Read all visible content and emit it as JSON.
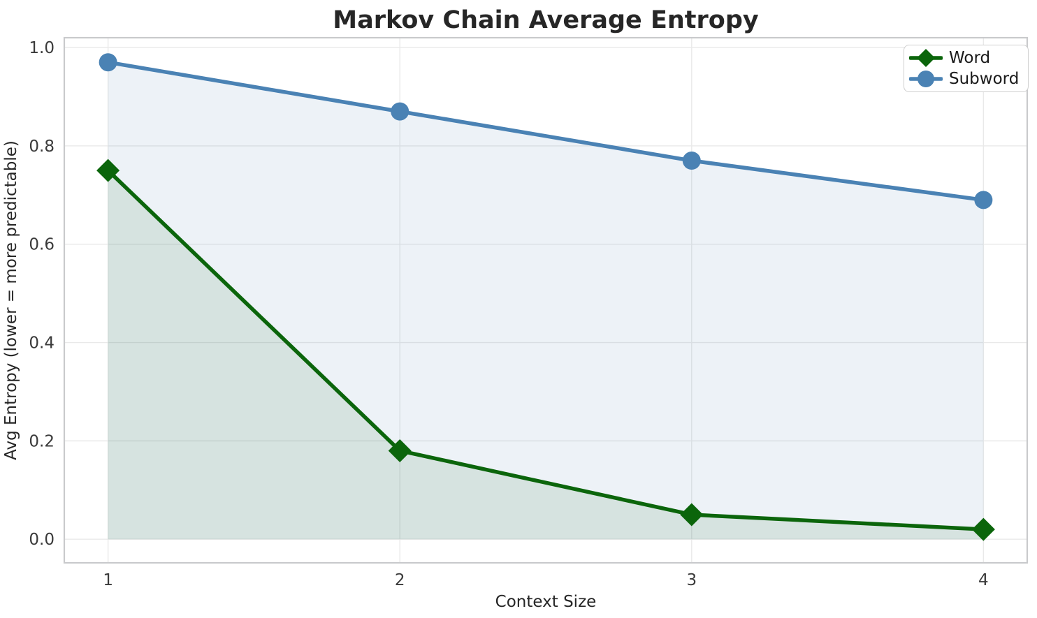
{
  "figure": {
    "background": "#ffffff"
  },
  "chart_data": {
    "type": "line",
    "title": "Markov Chain Average Entropy",
    "xlabel": "Context Size",
    "ylabel": "Avg Entropy (lower = more predictable)",
    "x": [
      1,
      2,
      3,
      4
    ],
    "series": [
      {
        "name": "Word",
        "color": "#0b650b",
        "marker": "diamond",
        "values": [
          0.75,
          0.18,
          0.05,
          0.02
        ],
        "fill_to_zero": true,
        "fill_alpha": 0.1
      },
      {
        "name": "Subword",
        "color": "#4a82b4",
        "marker": "circle",
        "values": [
          0.97,
          0.87,
          0.77,
          0.69
        ],
        "fill_to_zero": true,
        "fill_alpha": 0.1
      }
    ],
    "xlim": [
      0.85,
      4.15
    ],
    "ylim": [
      -0.048,
      1.02
    ],
    "xticks": {
      "values": [
        1,
        2,
        3,
        4
      ],
      "labels": [
        "1",
        "2",
        "3",
        "4"
      ]
    },
    "yticks": {
      "values": [
        0.0,
        0.2,
        0.4,
        0.6,
        0.8,
        1.0
      ],
      "labels": [
        "0.0",
        "0.2",
        "0.4",
        "0.6",
        "0.8",
        "1.0"
      ]
    },
    "grid": true,
    "legend": {
      "position": "upper-right",
      "items": [
        "Word",
        "Subword"
      ]
    }
  },
  "style": {
    "grid_color": "#e9e9e9",
    "spine_color": "#c9cacc",
    "title_color": "#262626",
    "label_color": "#262626",
    "tick_color": "#3a3a3a",
    "legend_text_color": "#1a1a1a",
    "legend_border_color": "#cfcfcf",
    "legend_background": "#ffffff"
  }
}
